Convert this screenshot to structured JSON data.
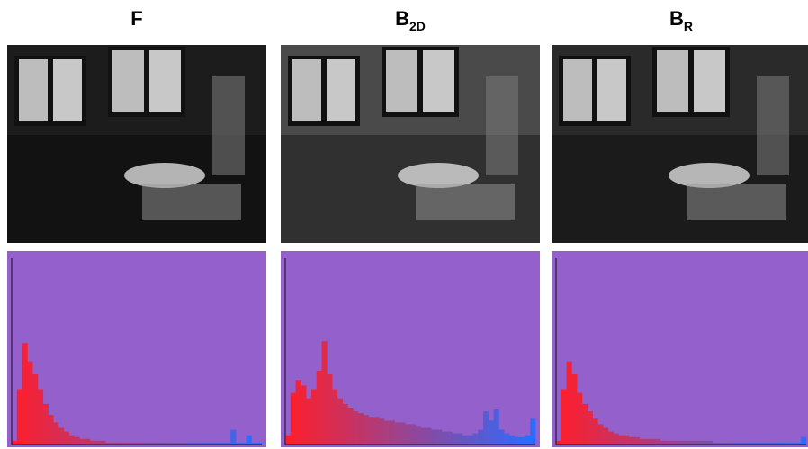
{
  "chart_data": [
    {
      "type": "bar",
      "title": "F",
      "ylim": [
        0,
        100
      ],
      "background": "#9460cc",
      "axis_color": "#3a2a50",
      "color_start": "#ff1e2a",
      "color_end": "#2a6cff",
      "values": [
        2,
        30,
        55,
        45,
        38,
        30,
        22,
        16,
        12,
        9,
        7,
        5,
        4,
        3,
        3,
        2,
        2,
        2,
        1,
        1,
        1,
        1,
        1,
        1,
        1,
        1,
        1,
        1,
        1,
        1,
        1,
        1,
        1,
        1,
        1,
        1,
        1,
        1,
        1,
        1,
        1,
        1,
        8,
        1,
        1,
        5,
        1,
        1
      ]
    },
    {
      "type": "bar",
      "title": "B",
      "title_subscript": "2D",
      "ylim": [
        0,
        100
      ],
      "background": "#9460cc",
      "axis_color": "#3a2a50",
      "color_start": "#ff1e2a",
      "color_end": "#2a6cff",
      "values": [
        5,
        28,
        35,
        32,
        25,
        30,
        40,
        56,
        38,
        30,
        25,
        22,
        20,
        18,
        17,
        16,
        15,
        15,
        14,
        13,
        13,
        12,
        12,
        11,
        11,
        10,
        9,
        9,
        8,
        8,
        7,
        7,
        6,
        6,
        5,
        5,
        6,
        8,
        18,
        13,
        19,
        8,
        6,
        5,
        4,
        4,
        5,
        14
      ]
    },
    {
      "type": "bar",
      "title": "B",
      "title_subscript": "R",
      "ylim": [
        0,
        100
      ],
      "background": "#9460cc",
      "axis_color": "#3a2a50",
      "color_start": "#ff1e2a",
      "color_end": "#2a6cff",
      "values": [
        2,
        30,
        45,
        38,
        28,
        22,
        18,
        14,
        11,
        9,
        7,
        6,
        5,
        5,
        4,
        4,
        3,
        3,
        3,
        3,
        2,
        2,
        2,
        2,
        2,
        2,
        2,
        2,
        2,
        2,
        1,
        1,
        1,
        1,
        1,
        1,
        1,
        1,
        1,
        1,
        1,
        1,
        1,
        1,
        1,
        1,
        1,
        4
      ]
    }
  ]
}
